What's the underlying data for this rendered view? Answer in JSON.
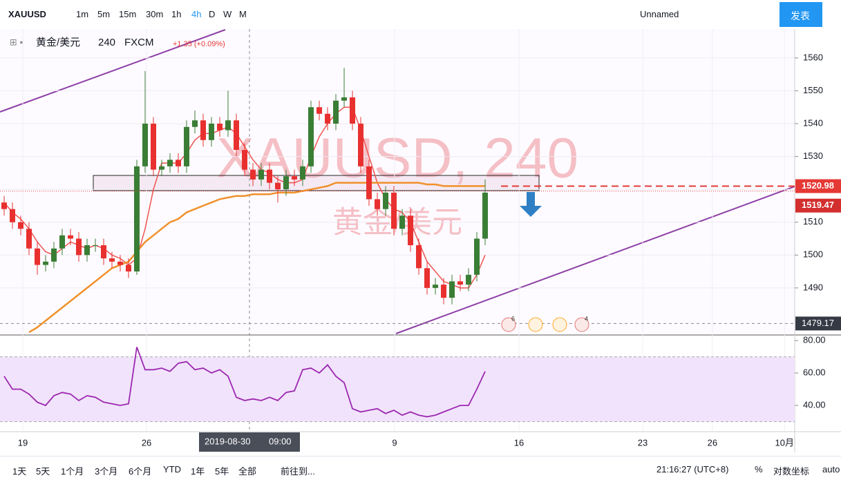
{
  "toolbar": {
    "symbol": "XAUUSD",
    "intervals": [
      "1m",
      "5m",
      "15m",
      "30m",
      "1h",
      "4h",
      "D",
      "W",
      "M"
    ],
    "layout": "Unnamed",
    "publish": "发表"
  },
  "chart_data": [
    {
      "type": "candlestick",
      "title": "XAUUSD, 240",
      "subtitle": "黄金/美元",
      "legend": {
        "name": "黄金/美元",
        "interval": "240",
        "source": "FXCM",
        "change": "+1.35 (+0.09%)"
      },
      "categories": [
        null,
        null,
        null,
        null,
        null,
        null,
        null,
        null,
        null,
        null,
        null,
        null,
        null,
        null,
        null,
        null,
        null,
        null,
        null,
        null,
        null,
        null,
        null,
        null,
        null,
        null,
        null,
        null,
        null,
        null,
        null,
        null,
        null,
        null,
        null,
        null,
        null,
        null,
        null,
        null,
        null,
        null,
        null,
        null,
        null,
        null,
        null,
        null,
        null,
        null,
        null,
        null,
        null,
        null,
        null,
        null,
        null,
        null,
        null
      ],
      "open": [
        1516,
        1514,
        1510,
        1508,
        1502,
        1497,
        1498,
        1502,
        1506,
        1505,
        1500,
        1503,
        1503,
        1499,
        1498,
        1497,
        1495,
        1527,
        1540,
        1526,
        1527,
        1529,
        1527,
        1539,
        1541,
        1535,
        1540,
        1538,
        1541,
        1532,
        1526,
        1523,
        1526,
        1522,
        1520,
        1524,
        1523,
        1527,
        1545,
        1543,
        1540,
        1547,
        1548,
        1540,
        1527,
        1517,
        1514,
        1519,
        1508,
        1512,
        1503,
        1496,
        1490,
        1491,
        1487,
        1492,
        1491,
        1494,
        1505
      ],
      "high": [
        1518,
        1516,
        1512,
        1510,
        1504,
        1500,
        1504,
        1508,
        1508,
        1507,
        1505,
        1505,
        1505,
        1501,
        1500,
        1499,
        1529,
        1556,
        1542,
        1529,
        1531,
        1531,
        1541,
        1544,
        1543,
        1542,
        1542,
        1550,
        1543,
        1534,
        1528,
        1528,
        1528,
        1524,
        1526,
        1526,
        1529,
        1547,
        1547,
        1545,
        1549,
        1557,
        1550,
        1542,
        1529,
        1519,
        1521,
        1521,
        1514,
        1514,
        1505,
        1498,
        1493,
        1493,
        1494,
        1494,
        1496,
        1507,
        1523
      ],
      "low": [
        1512,
        1508,
        1506,
        1500,
        1494,
        1495,
        1496,
        1500,
        1503,
        1498,
        1498,
        1501,
        1497,
        1496,
        1495,
        1493,
        1494,
        1525,
        1524,
        1524,
        1525,
        1525,
        1525,
        1537,
        1533,
        1533,
        1536,
        1536,
        1530,
        1524,
        1521,
        1521,
        1520,
        1516,
        1518,
        1521,
        1521,
        1525,
        1541,
        1538,
        1538,
        1545,
        1538,
        1525,
        1515,
        1512,
        1512,
        1506,
        1506,
        1501,
        1494,
        1488,
        1488,
        1485,
        1485,
        1489,
        1489,
        1492,
        1503
      ],
      "close": [
        1514,
        1510,
        1508,
        1502,
        1497,
        1498,
        1502,
        1506,
        1505,
        1500,
        1503,
        1503,
        1499,
        1498,
        1497,
        1495,
        1527,
        1540,
        1526,
        1527,
        1529,
        1527,
        1539,
        1541,
        1535,
        1540,
        1538,
        1541,
        1532,
        1526,
        1523,
        1526,
        1522,
        1520,
        1524,
        1523,
        1527,
        1545,
        1543,
        1540,
        1547,
        1548,
        1540,
        1527,
        1517,
        1514,
        1519,
        1508,
        1512,
        1503,
        1496,
        1490,
        1491,
        1487,
        1492,
        1491,
        1494,
        1505,
        1519
      ],
      "up_color": "#3a7d35",
      "down_color": "#e8302f",
      "overlays": [
        {
          "color": "#ef5350",
          "values": [
            1516,
            1513,
            1511,
            1508,
            1504,
            1501,
            1500,
            1502,
            1504,
            1503,
            1502,
            1503,
            1502,
            1500,
            1499,
            1497,
            1499,
            1508,
            1520,
            1528,
            1528,
            1528,
            1531,
            1535,
            1537,
            1537,
            1538,
            1539,
            1537,
            1533,
            1529,
            1526,
            1525,
            1523,
            1522,
            1522,
            1523,
            1530,
            1536,
            1540,
            1543,
            1545,
            1545,
            1538,
            1530,
            1522,
            1517,
            1514,
            1513,
            1510,
            1504,
            1498,
            1495,
            1492,
            1491,
            1490,
            1490,
            1494,
            1500
          ]
        },
        {
          "color": "#f0902a",
          "values": [
            null,
            null,
            null,
            1476.5,
            1478,
            1480,
            1482,
            1484,
            1486,
            1488,
            1490,
            1492,
            1494,
            1496,
            1497,
            1498,
            1501,
            1504,
            1506,
            1508,
            1510,
            1511,
            1513,
            1514,
            1515,
            1516,
            1517,
            1517.5,
            1518,
            1518,
            1518.5,
            1518.5,
            1518.5,
            1519,
            1519,
            1519,
            1519.5,
            1520,
            1520.5,
            1521,
            1522,
            1522,
            1522,
            1522,
            1522,
            1522,
            1522,
            1522,
            1522,
            1522,
            1522,
            1521.5,
            1521.5,
            1521,
            1521,
            1521,
            1521,
            1521,
            1521
          ]
        }
      ],
      "xlim": [
        -0.5,
        95.33
      ],
      "xticks": [
        {
          "value": 2.25,
          "label": "19"
        },
        {
          "value": 17.17,
          "label": "26"
        },
        {
          "value": 47.08,
          "label": "9"
        },
        {
          "value": 62.08,
          "label": "16"
        },
        {
          "value": 77.0,
          "label": "23"
        },
        {
          "value": 85.4,
          "label": "26"
        },
        {
          "value": 94.1,
          "label": "10月"
        }
      ],
      "ylim": [
        1476.1,
        1568.8
      ],
      "yticks": [
        1490,
        1500,
        1510,
        1520,
        1530,
        1540,
        1550,
        1560
      ],
      "price_markers": {
        "alert": 1520.98,
        "last": 1519.47
      },
      "crosshair": {
        "date": "2019-08-30",
        "time": "09:00",
        "price": 1479.17
      },
      "events": [
        "6",
        "4"
      ]
    },
    {
      "type": "line",
      "color": "#9c27b0",
      "values": [
        58,
        50,
        50,
        47,
        42,
        40,
        46,
        48,
        47,
        43,
        46,
        45,
        42,
        41,
        40,
        41,
        76,
        62,
        62,
        63,
        61,
        66,
        67,
        62,
        63,
        60,
        62,
        58,
        45,
        43,
        44,
        43,
        45,
        43,
        48,
        49,
        62,
        63,
        60,
        65,
        58,
        54,
        38,
        36,
        37,
        38,
        35,
        37,
        34,
        36,
        34,
        33,
        34,
        36,
        38,
        40,
        40,
        50,
        61
      ],
      "ylim": [
        23.8,
        82.6
      ],
      "yticks": [
        {
          "value": 40,
          "label": "40.00"
        },
        {
          "value": 60,
          "label": "60.00"
        },
        {
          "value": 80,
          "label": "80.00"
        }
      ],
      "band": [
        30,
        70
      ]
    }
  ],
  "bottom_bar": {
    "ranges": [
      "1天",
      "5天",
      "1个月",
      "3个月",
      "6个月",
      "YTD",
      "1年",
      "5年",
      "全部"
    ],
    "goto": "前往到...",
    "clock": "21:16:27 (UTC+8)",
    "percent": "%",
    "log": "对数坐标",
    "auto": "auto"
  }
}
